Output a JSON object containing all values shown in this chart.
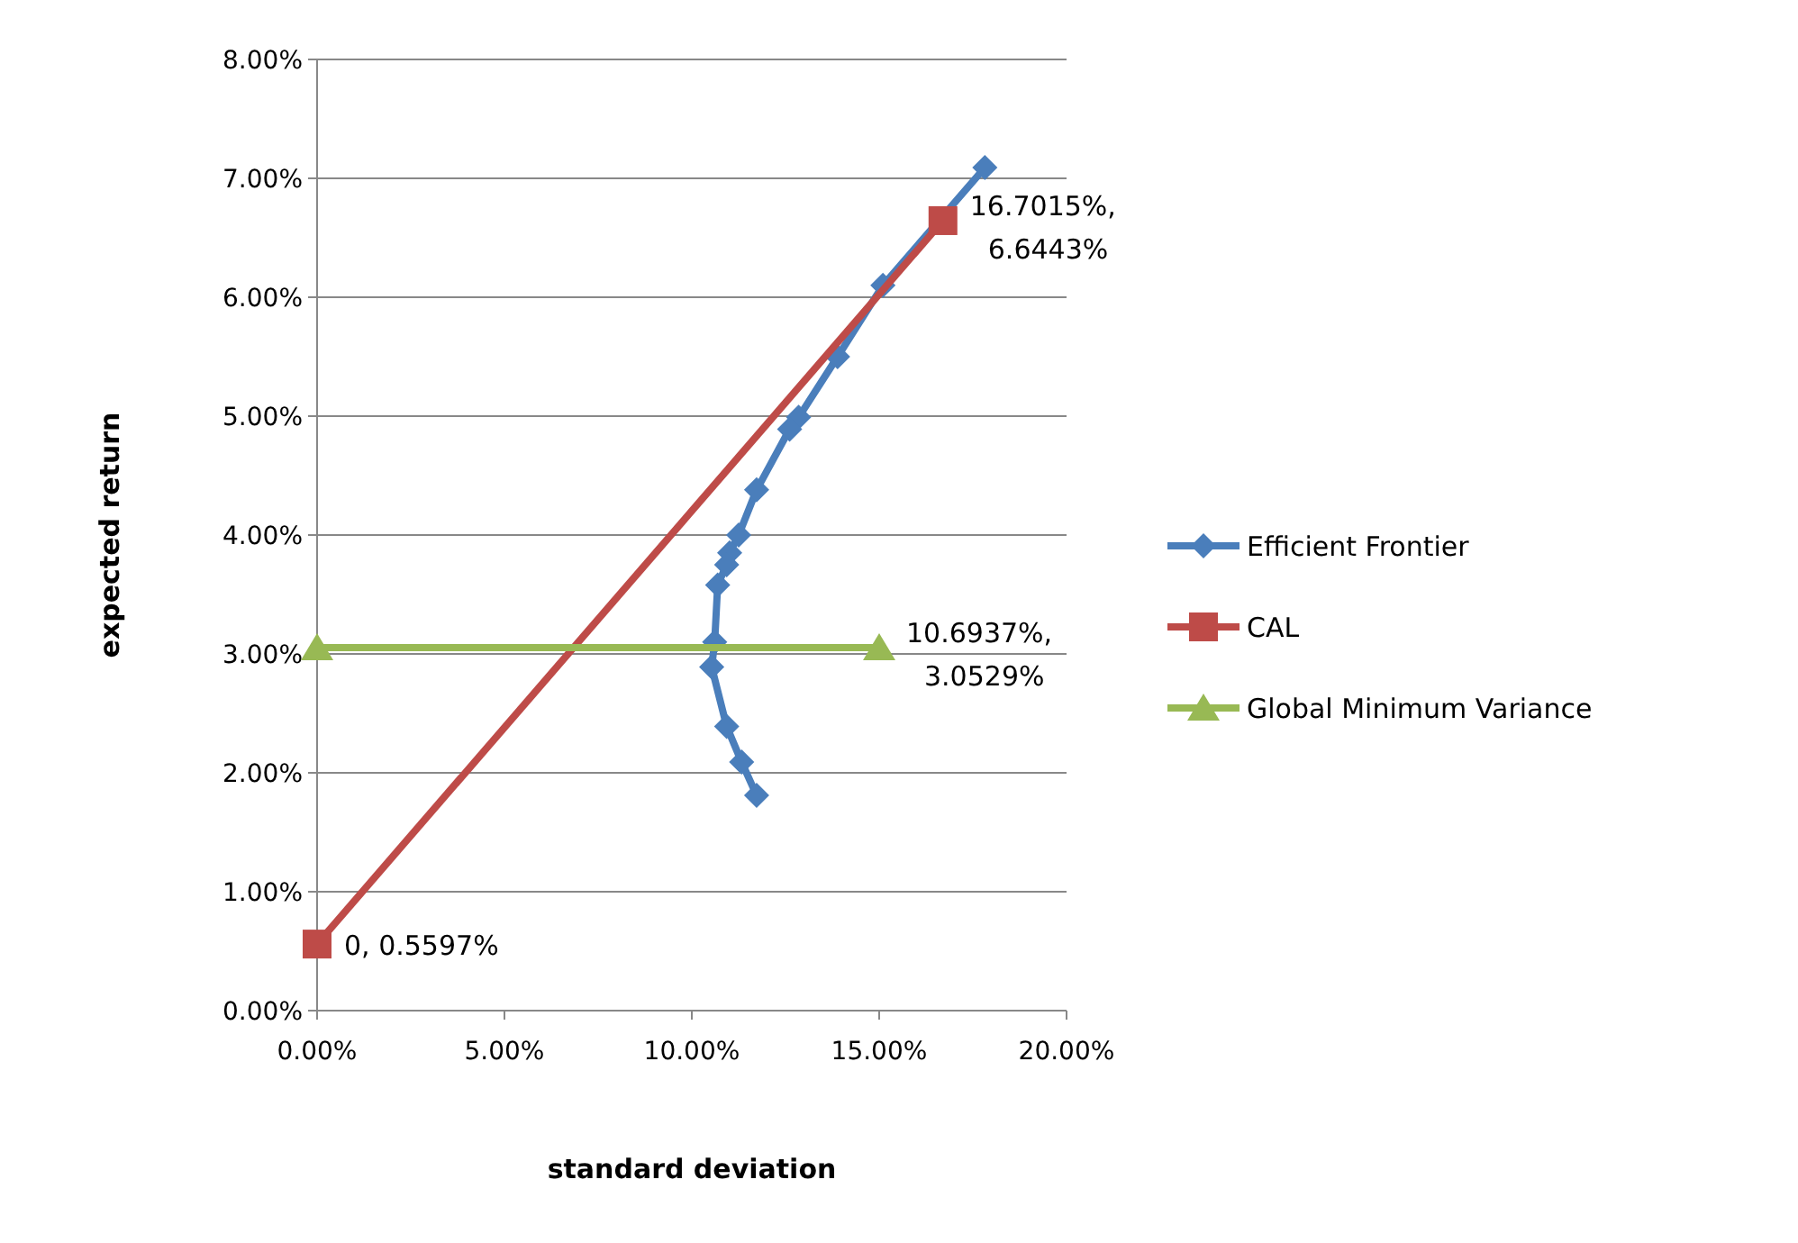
{
  "chart_data": {
    "type": "line",
    "xlabel": "standard deviation",
    "ylabel": "expected return",
    "xlim": [
      0,
      20
    ],
    "ylim": [
      0,
      8
    ],
    "xticks": [
      {
        "value": 0,
        "label": "0.00%"
      },
      {
        "value": 5,
        "label": "5.00%"
      },
      {
        "value": 10,
        "label": "10.00%"
      },
      {
        "value": 15,
        "label": "15.00%"
      },
      {
        "value": 20,
        "label": "20.00%"
      }
    ],
    "yticks": [
      {
        "value": 0,
        "label": "0.00%"
      },
      {
        "value": 1,
        "label": "1.00%"
      },
      {
        "value": 2,
        "label": "2.00%"
      },
      {
        "value": 3,
        "label": "3.00%"
      },
      {
        "value": 4,
        "label": "4.00%"
      },
      {
        "value": 5,
        "label": "5.00%"
      },
      {
        "value": 6,
        "label": "6.00%"
      },
      {
        "value": 7,
        "label": "7.00%"
      },
      {
        "value": 8,
        "label": "8.00%"
      }
    ],
    "grid": "y",
    "legend": "right",
    "line_style": "solid",
    "series": [
      {
        "name": "Efficient Frontier",
        "color": "#4a7ebb",
        "marker": "diamond",
        "x": [
          17.82,
          15.1,
          13.89,
          12.85,
          12.61,
          11.73,
          11.25,
          11.01,
          10.93,
          10.69,
          10.61,
          10.53,
          10.93,
          11.33,
          11.73
        ],
        "values": [
          7.09,
          6.1,
          5.5,
          4.99,
          4.89,
          4.38,
          4.0,
          3.85,
          3.75,
          3.58,
          3.1,
          2.89,
          2.39,
          2.09,
          1.81
        ]
      },
      {
        "name": "CAL",
        "color": "#be4b48",
        "marker": "square",
        "x": [
          0,
          16.7015
        ],
        "values": [
          0.5597,
          6.6443
        ]
      },
      {
        "name": "Global Minimum Variance",
        "color": "#98b954",
        "marker": "triangle",
        "x": [
          0,
          15
        ],
        "values": [
          3.0529,
          3.0529
        ]
      }
    ],
    "annotations": [
      {
        "text": "16.7015%,\n6.6443%",
        "x": 16.7015,
        "y": 6.6443
      },
      {
        "text": "10.6937%,\n3.0529%",
        "x": 15,
        "y": 3.0529
      },
      {
        "text": "0, 0.5597%",
        "x": 0,
        "y": 0.5597
      }
    ]
  }
}
